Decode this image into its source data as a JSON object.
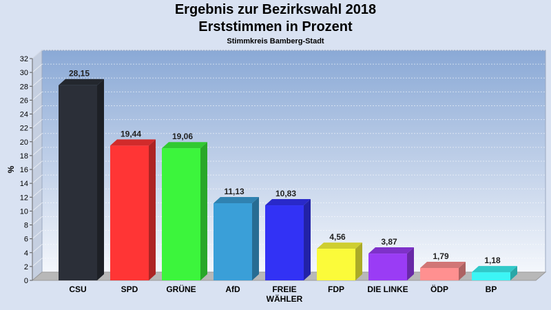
{
  "chart_data": {
    "type": "bar",
    "title": "Ergebnis zur Bezirkswahl 2018",
    "subtitle_line": "Erststimmen in Prozent",
    "subtitle": "Stimmkreis Bamberg-Stadt",
    "xlabel": "",
    "ylabel": "%",
    "ylim": [
      0,
      32
    ],
    "y_ticks": [
      0,
      2,
      4,
      6,
      8,
      10,
      12,
      14,
      16,
      18,
      20,
      22,
      24,
      26,
      28,
      30,
      32
    ],
    "grid": true,
    "categories": [
      "CSU",
      "SPD",
      "GRÜNE",
      "AfD",
      "FREIE WÄHLER",
      "FDP",
      "DIE LINKE",
      "ÖDP",
      "BP"
    ],
    "category_lines": [
      [
        "CSU"
      ],
      [
        "SPD"
      ],
      [
        "GRÜNE"
      ],
      [
        "AfD"
      ],
      [
        "FREIE",
        "WÄHLER"
      ],
      [
        "FDP"
      ],
      [
        "DIE LINKE"
      ],
      [
        "ÖDP"
      ],
      [
        "BP"
      ]
    ],
    "values": [
      28.15,
      19.44,
      19.06,
      11.13,
      10.83,
      4.56,
      3.87,
      1.79,
      1.18
    ],
    "value_labels": [
      "28,15",
      "19,44",
      "19,06",
      "11,13",
      "10,83",
      "4,56",
      "3,87",
      "1,79",
      "1,18"
    ],
    "colors": [
      "#2b2f38",
      "#ff3535",
      "#3cf53c",
      "#3a9fd8",
      "#3232f5",
      "#fbfb3a",
      "#9a3cf5",
      "#ff9090",
      "#3cf5f5"
    ]
  }
}
